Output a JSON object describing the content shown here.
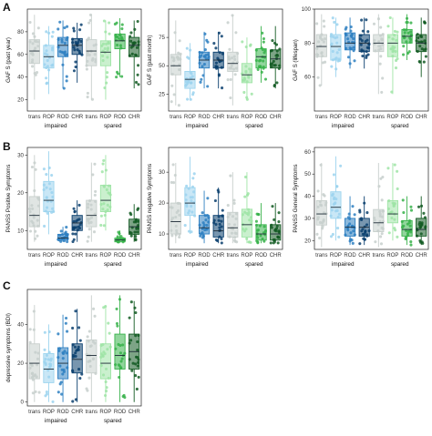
{
  "panel_letters": [
    "A",
    "B",
    "C"
  ],
  "group_labels": [
    "impaired",
    "spared"
  ],
  "category_labels": [
    "trans",
    "ROP",
    "ROD",
    "CHR"
  ],
  "colors": {
    "trans": "#c7cfcc",
    "impaired": [
      "#9cd4ee",
      "#2d7fc1",
      "#0a3f6e"
    ],
    "spared": [
      "#9fe4a6",
      "#37b24a",
      "#125a22"
    ]
  },
  "chart_data": [
    {
      "type": "box",
      "panel": "A",
      "ylabel": "GAF S (past year)",
      "ylim": [
        10,
        100
      ],
      "yticks": [
        20,
        40,
        60,
        80
      ],
      "groups": [
        "impaired",
        "spared"
      ],
      "categories": [
        "trans",
        "ROP",
        "ROD",
        "CHR"
      ],
      "boxes": {
        "impaired": [
          [
            20,
            52,
            63,
            73,
            95
          ],
          [
            25,
            48,
            58,
            68,
            85
          ],
          [
            30,
            58,
            68,
            75,
            90
          ],
          [
            35,
            60,
            68,
            74,
            88
          ]
        ],
        "spared": [
          [
            20,
            50,
            63,
            73,
            95
          ],
          [
            20,
            50,
            62,
            72,
            90
          ],
          [
            40,
            65,
            72,
            78,
            92
          ],
          [
            30,
            58,
            68,
            75,
            90
          ]
        ]
      }
    },
    {
      "type": "box",
      "panel": "A",
      "ylabel": "GAF S (past month)",
      "ylim": [
        10,
        100
      ],
      "yticks": [
        25,
        50,
        75
      ],
      "groups": [
        "impaired",
        "spared"
      ],
      "categories": [
        "trans",
        "ROP",
        "ROD",
        "CHR"
      ],
      "boxes": {
        "impaired": [
          [
            15,
            42,
            50,
            60,
            90
          ],
          [
            20,
            30,
            38,
            45,
            70
          ],
          [
            30,
            48,
            55,
            62,
            80
          ],
          [
            30,
            48,
            55,
            62,
            80
          ]
        ],
        "spared": [
          [
            15,
            45,
            52,
            62,
            95
          ],
          [
            20,
            35,
            42,
            52,
            75
          ],
          [
            35,
            48,
            58,
            65,
            85
          ],
          [
            30,
            48,
            56,
            64,
            85
          ]
        ]
      }
    },
    {
      "type": "box",
      "panel": "A",
      "ylabel": "GAF S (lifespan)",
      "ylim": [
        40,
        100
      ],
      "yticks": [
        60,
        80,
        100
      ],
      "groups": [
        "impaired",
        "spared"
      ],
      "categories": [
        "trans",
        "ROP",
        "ROD",
        "CHR"
      ],
      "boxes": {
        "impaired": [
          [
            55,
            72,
            78,
            85,
            97
          ],
          [
            60,
            70,
            78,
            85,
            95
          ],
          [
            65,
            76,
            80,
            86,
            95
          ],
          [
            65,
            75,
            80,
            85,
            95
          ]
        ],
        "spared": [
          [
            50,
            75,
            80,
            85,
            97
          ],
          [
            50,
            72,
            80,
            85,
            95
          ],
          [
            70,
            80,
            84,
            88,
            97
          ],
          [
            60,
            75,
            80,
            85,
            95
          ]
        ]
      }
    },
    {
      "type": "box",
      "panel": "B",
      "ylabel": "PANSS Positive Symptoms",
      "ylim": [
        5,
        32
      ],
      "yticks": [
        10,
        20,
        30
      ],
      "groups": [
        "impaired",
        "spared"
      ],
      "categories": [
        "trans",
        "ROP",
        "ROD",
        "CHR"
      ],
      "boxes": {
        "impaired": [
          [
            7,
            11,
            14,
            19,
            30
          ],
          [
            9,
            15,
            18,
            23,
            31
          ],
          [
            7,
            7.5,
            8,
            9,
            11
          ],
          [
            7,
            10,
            12,
            14,
            18
          ]
        ],
        "spared": [
          [
            7,
            11,
            14,
            18,
            28
          ],
          [
            10,
            15,
            18,
            22,
            30
          ],
          [
            7,
            7,
            7.5,
            8,
            10
          ],
          [
            7,
            9,
            11,
            13,
            17
          ]
        ]
      }
    },
    {
      "type": "box",
      "panel": "B",
      "ylabel": "PANSS negative Symptoms",
      "ylim": [
        5,
        38
      ],
      "yticks": [
        10,
        20,
        30
      ],
      "groups": [
        "impaired",
        "spared"
      ],
      "categories": [
        "trans",
        "ROP",
        "ROD",
        "CHR"
      ],
      "boxes": {
        "impaired": [
          [
            7,
            10,
            14,
            20,
            33
          ],
          [
            10,
            16,
            20,
            25,
            35
          ],
          [
            7,
            10,
            12,
            16,
            24
          ],
          [
            7,
            9,
            11,
            16,
            25
          ]
        ],
        "spared": [
          [
            7,
            9,
            12,
            17,
            30
          ],
          [
            7,
            9,
            13,
            18,
            30
          ],
          [
            7,
            8,
            10,
            13,
            20
          ],
          [
            7,
            8,
            10,
            13,
            20
          ]
        ]
      }
    },
    {
      "type": "box",
      "panel": "B",
      "ylabel": "PANSS General Symptoms",
      "ylim": [
        16,
        62
      ],
      "yticks": [
        20,
        30,
        40,
        50,
        60
      ],
      "groups": [
        "impaired",
        "spared"
      ],
      "categories": [
        "trans",
        "ROP",
        "ROD",
        "CHR"
      ],
      "boxes": {
        "impaired": [
          [
            17,
            27,
            32,
            38,
            55
          ],
          [
            20,
            30,
            35,
            42,
            58
          ],
          [
            18,
            22,
            26,
            30,
            40
          ],
          [
            18,
            22,
            26,
            30,
            40
          ]
        ],
        "spared": [
          [
            17,
            24,
            28,
            34,
            55
          ],
          [
            20,
            28,
            32,
            38,
            55
          ],
          [
            18,
            22,
            25,
            29,
            40
          ],
          [
            18,
            22,
            25,
            30,
            40
          ]
        ]
      }
    },
    {
      "type": "box",
      "panel": "C",
      "ylabel": "depressive symptoms (BDI)",
      "ylim": [
        -2,
        58
      ],
      "yticks": [
        0,
        20,
        40
      ],
      "groups": [
        "impaired",
        "spared"
      ],
      "categories": [
        "trans",
        "ROP",
        "ROD",
        "CHR"
      ],
      "boxes": {
        "impaired": [
          [
            0,
            12,
            20,
            30,
            50
          ],
          [
            0,
            10,
            17,
            25,
            40
          ],
          [
            0,
            12,
            20,
            28,
            45
          ],
          [
            0,
            15,
            22,
            30,
            48
          ]
        ],
        "spared": [
          [
            0,
            15,
            24,
            32,
            55
          ],
          [
            0,
            12,
            20,
            30,
            50
          ],
          [
            0,
            17,
            24,
            35,
            55
          ],
          [
            0,
            17,
            26,
            35,
            52
          ]
        ]
      }
    }
  ]
}
